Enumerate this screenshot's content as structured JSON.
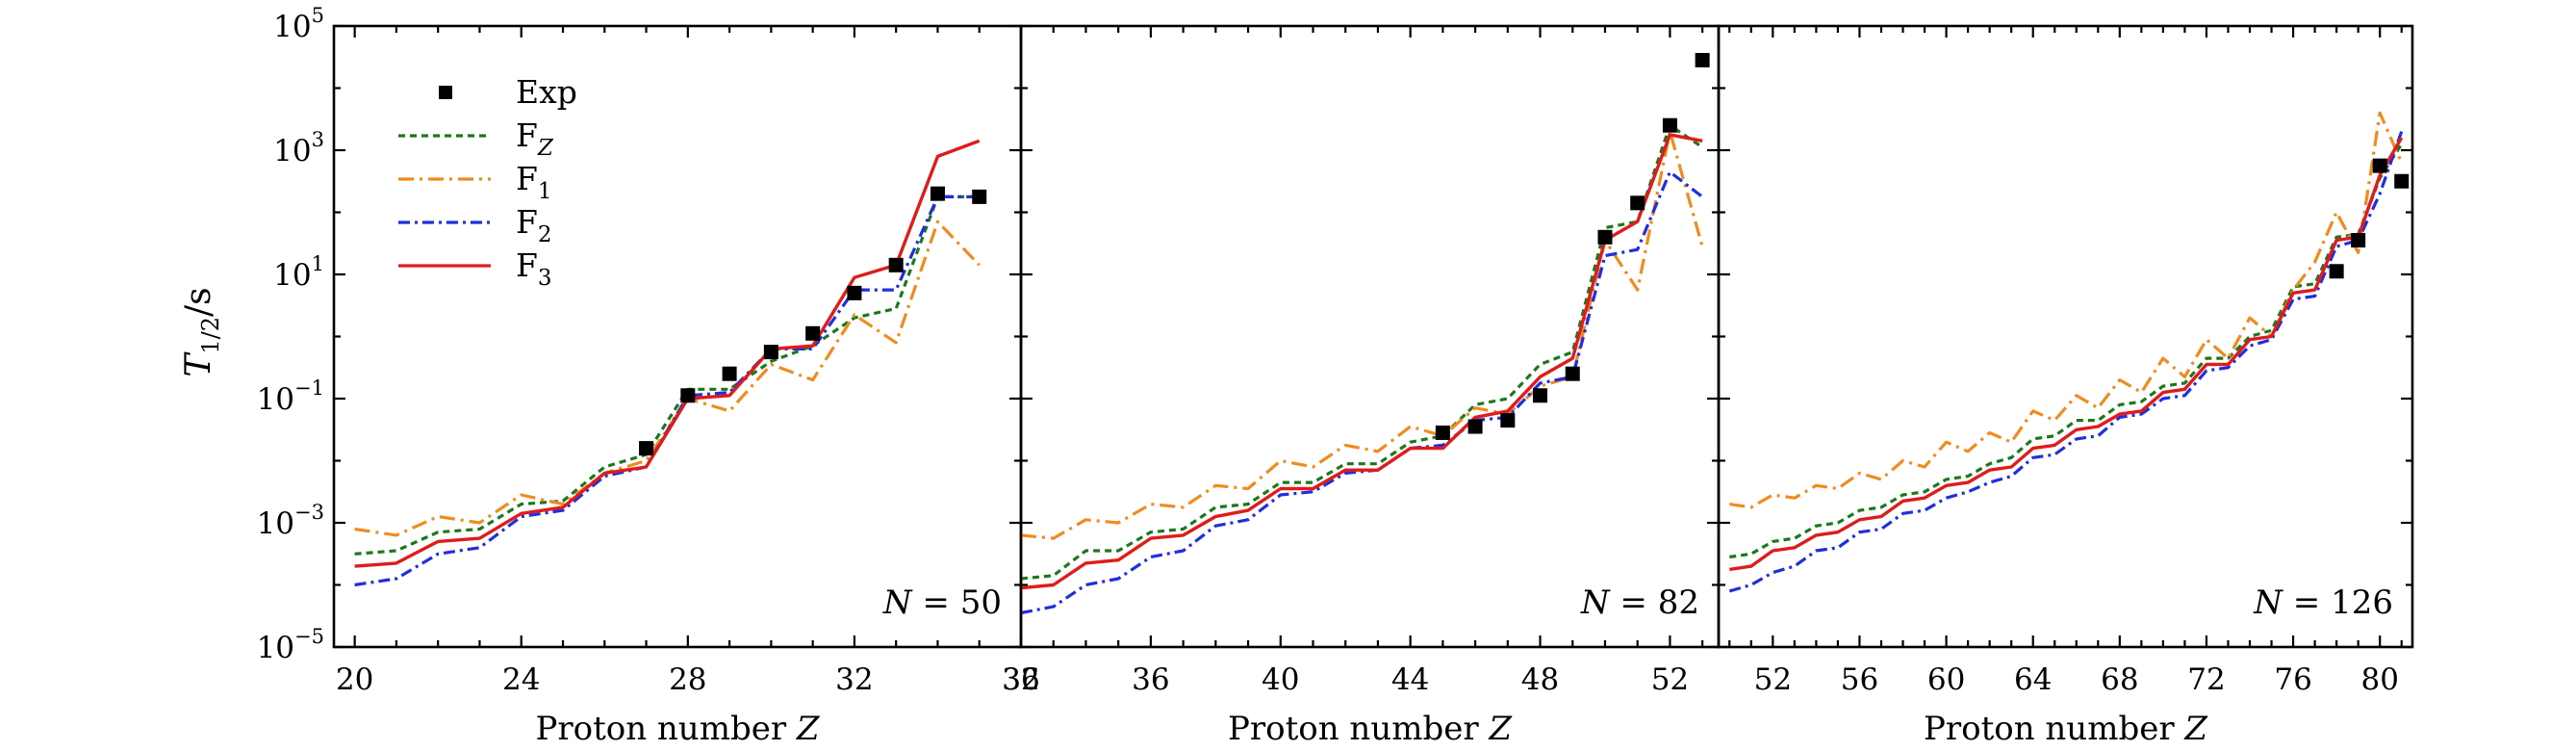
{
  "chart_data": {
    "type": "line",
    "ylabel": "T1/2/s",
    "yscale": "log",
    "ylim_log10": [
      -5,
      5
    ],
    "yticks_log10": [
      -5,
      -3,
      -1,
      1,
      3,
      5
    ],
    "yticklabels": [
      {
        "base": "10",
        "exp": "−5"
      },
      {
        "base": "10",
        "exp": "−3"
      },
      {
        "base": "10",
        "exp": "−1"
      },
      {
        "base": "10",
        "exp": "1"
      },
      {
        "base": "10",
        "exp": "3"
      },
      {
        "base": "10",
        "exp": "5"
      }
    ],
    "xlabel": "Proton number",
    "xlabel_var": "Z",
    "legend": {
      "position": "top-left",
      "entries": [
        {
          "key": "exp",
          "label": "Exp",
          "sub": ""
        },
        {
          "key": "fz",
          "label": "F",
          "sub": "Z"
        },
        {
          "key": "f1",
          "label": "F",
          "sub": "1"
        },
        {
          "key": "f2",
          "label": "F",
          "sub": "2"
        },
        {
          "key": "f3",
          "label": "F",
          "sub": "3"
        }
      ]
    },
    "series_styles": {
      "fz": {
        "color": "#1a7a1a",
        "dash": "7,5"
      },
      "f1": {
        "color": "#f08c1e",
        "dash": "16,6,3,6"
      },
      "f2": {
        "color": "#1f2fe0",
        "dash": "12,5,3,5"
      },
      "f3": {
        "color": "#e01b1b",
        "dash": ""
      }
    },
    "exp_color": "#000000",
    "panels": [
      {
        "label": "N = 50",
        "xlim": [
          19.5,
          36
        ],
        "xticks": [
          20,
          24,
          28,
          32,
          36
        ],
        "xticklabels": [
          "20",
          "24",
          "28",
          "32",
          "36"
        ],
        "x": [
          20,
          21,
          22,
          23,
          24,
          25,
          26,
          27,
          28,
          29,
          30,
          31,
          32,
          33,
          34,
          35
        ],
        "series": {
          "fz": [
            -3.5,
            -3.45,
            -3.15,
            -3.1,
            -2.7,
            -2.65,
            -2.1,
            -1.9,
            -0.85,
            -0.85,
            -0.4,
            -0.15,
            0.3,
            0.45,
            2.25,
            2.25
          ],
          "f1": [
            -3.1,
            -3.2,
            -2.9,
            -3.0,
            -2.55,
            -2.7,
            -2.2,
            -2.0,
            -1.0,
            -1.2,
            -0.45,
            -0.7,
            0.35,
            -0.1,
            1.85,
            1.15
          ],
          "f2": [
            -4.0,
            -3.9,
            -3.5,
            -3.4,
            -2.9,
            -2.8,
            -2.25,
            -2.1,
            -0.95,
            -0.9,
            -0.2,
            -0.2,
            0.75,
            0.75,
            2.25,
            2.25
          ],
          "f3": [
            -3.7,
            -3.65,
            -3.3,
            -3.25,
            -2.85,
            -2.75,
            -2.2,
            -2.1,
            -1.0,
            -0.95,
            -0.2,
            -0.15,
            0.95,
            1.15,
            2.9,
            3.15
          ]
        },
        "exp": [
          [
            27,
            -1.8
          ],
          [
            28,
            -0.95
          ],
          [
            29,
            -0.6
          ],
          [
            30,
            -0.25
          ],
          [
            31,
            0.05
          ],
          [
            32,
            0.7
          ],
          [
            33,
            1.15
          ],
          [
            34,
            2.3
          ],
          [
            35,
            2.25
          ]
        ]
      },
      {
        "label": "N = 82",
        "xlim": [
          32,
          53.5
        ],
        "xticks": [
          32,
          36,
          40,
          44,
          48,
          52
        ],
        "xticklabels": [
          "32",
          "36",
          "40",
          "44",
          "48",
          "52"
        ],
        "x": [
          32,
          33,
          34,
          35,
          36,
          37,
          38,
          39,
          40,
          41,
          42,
          43,
          44,
          45,
          46,
          47,
          48,
          49,
          50,
          51,
          52,
          53
        ],
        "series": {
          "fz": [
            -3.9,
            -3.85,
            -3.45,
            -3.45,
            -3.15,
            -3.1,
            -2.75,
            -2.7,
            -2.35,
            -2.35,
            -2.05,
            -2.05,
            -1.7,
            -1.6,
            -1.1,
            -1.0,
            -0.45,
            -0.25,
            1.75,
            1.85,
            3.4,
            3.05
          ],
          "f1": [
            -3.2,
            -3.25,
            -2.95,
            -3.0,
            -2.7,
            -2.75,
            -2.4,
            -2.45,
            -2.0,
            -2.1,
            -1.75,
            -1.85,
            -1.45,
            -1.6,
            -1.15,
            -1.25,
            -0.8,
            -0.65,
            1.55,
            0.75,
            3.3,
            1.45
          ],
          "f2": [
            -4.45,
            -4.35,
            -4.0,
            -3.9,
            -3.55,
            -3.45,
            -3.05,
            -2.95,
            -2.55,
            -2.5,
            -2.2,
            -2.15,
            -1.8,
            -1.75,
            -1.35,
            -1.3,
            -0.75,
            -0.65,
            1.3,
            1.4,
            2.65,
            2.25
          ],
          "f3": [
            -4.05,
            -4.0,
            -3.65,
            -3.6,
            -3.25,
            -3.2,
            -2.9,
            -2.8,
            -2.45,
            -2.45,
            -2.15,
            -2.15,
            -1.8,
            -1.8,
            -1.3,
            -1.2,
            -0.65,
            -0.35,
            1.55,
            1.85,
            3.25,
            3.15
          ]
        },
        "exp": [
          [
            45,
            -1.55
          ],
          [
            46,
            -1.45
          ],
          [
            47,
            -1.35
          ],
          [
            48,
            -0.95
          ],
          [
            49,
            -0.6
          ],
          [
            50,
            1.6
          ],
          [
            51,
            2.15
          ],
          [
            52,
            3.4
          ],
          [
            53,
            4.45
          ]
        ]
      },
      {
        "label": "N = 126",
        "xlim": [
          49.5,
          81.5
        ],
        "xticks": [
          52,
          56,
          60,
          64,
          68,
          72,
          76,
          80
        ],
        "xticklabels": [
          "52",
          "56",
          "60",
          "64",
          "68",
          "72",
          "76",
          "80"
        ],
        "x": [
          50,
          51,
          52,
          53,
          54,
          55,
          56,
          57,
          58,
          59,
          60,
          61,
          62,
          63,
          64,
          65,
          66,
          67,
          68,
          69,
          70,
          71,
          72,
          73,
          74,
          75,
          76,
          77,
          78,
          79,
          80,
          81
        ],
        "series": {
          "fz": [
            -3.55,
            -3.5,
            -3.3,
            -3.25,
            -3.05,
            -3.0,
            -2.8,
            -2.75,
            -2.55,
            -2.5,
            -2.3,
            -2.25,
            -2.05,
            -1.95,
            -1.65,
            -1.6,
            -1.35,
            -1.35,
            -1.1,
            -1.05,
            -0.8,
            -0.75,
            -0.35,
            -0.35,
            0.0,
            0.1,
            0.8,
            0.85,
            1.6,
            1.65,
            2.55,
            3.1
          ],
          "f1": [
            -2.7,
            -2.75,
            -2.55,
            -2.6,
            -2.4,
            -2.45,
            -2.2,
            -2.3,
            -2.0,
            -2.1,
            -1.7,
            -1.85,
            -1.55,
            -1.7,
            -1.2,
            -1.35,
            -0.95,
            -1.15,
            -0.7,
            -0.9,
            -0.35,
            -0.65,
            -0.05,
            -0.35,
            0.3,
            0.0,
            0.75,
            1.2,
            2.0,
            1.35,
            3.6,
            2.8
          ],
          "f2": [
            -4.1,
            -4.0,
            -3.8,
            -3.7,
            -3.45,
            -3.4,
            -3.15,
            -3.1,
            -2.85,
            -2.8,
            -2.6,
            -2.5,
            -2.35,
            -2.25,
            -1.95,
            -1.9,
            -1.65,
            -1.6,
            -1.3,
            -1.25,
            -1.0,
            -0.95,
            -0.55,
            -0.5,
            -0.15,
            -0.05,
            0.6,
            0.65,
            1.45,
            1.55,
            2.3,
            3.3
          ],
          "f3": [
            -3.75,
            -3.7,
            -3.45,
            -3.4,
            -3.2,
            -3.15,
            -2.95,
            -2.9,
            -2.65,
            -2.6,
            -2.4,
            -2.35,
            -2.15,
            -2.1,
            -1.8,
            -1.75,
            -1.5,
            -1.45,
            -1.25,
            -1.2,
            -0.9,
            -0.85,
            -0.45,
            -0.45,
            -0.05,
            0.0,
            0.7,
            0.75,
            1.55,
            1.6,
            2.6,
            3.2
          ]
        },
        "exp": [
          [
            78,
            1.05
          ],
          [
            79,
            1.55
          ],
          [
            80,
            2.75
          ],
          [
            81,
            2.5
          ]
        ]
      }
    ]
  }
}
